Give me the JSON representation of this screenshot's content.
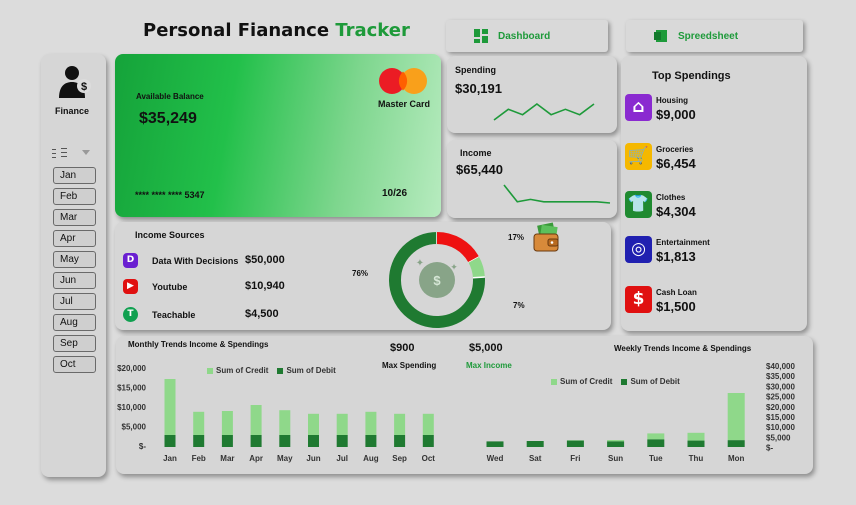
{
  "header": {
    "title_black": "Personal Fianance",
    "title_green": "Tracker"
  },
  "nav": {
    "dashboard": "Dashboard",
    "spreadsheet": "Spreedsheet"
  },
  "sidebar": {
    "label": "Finance",
    "months": [
      "Jan",
      "Feb",
      "Mar",
      "Apr",
      "May",
      "Jun",
      "Jul",
      "Aug",
      "Sep",
      "Oct"
    ]
  },
  "card": {
    "balance_label": "Available Balance",
    "balance": "$35,249",
    "brand": "Master Card",
    "number": "**** **** **** 5347",
    "expiry": "10/26"
  },
  "spending": {
    "label": "Spending",
    "value": "$30,191",
    "trend": [
      3,
      5,
      4,
      6,
      4,
      5,
      4,
      6
    ]
  },
  "income": {
    "label": "Income",
    "value": "$65,440",
    "trend": [
      9,
      2,
      3,
      2,
      2,
      2,
      2,
      2,
      1.5
    ]
  },
  "income_sources": {
    "title": "Income Sources",
    "items": [
      {
        "name": "Data With Decisions",
        "amount": "$50,000",
        "icon": "d-logo-icon",
        "color": "#6a1fd1"
      },
      {
        "name": "Youtube",
        "amount": "$10,940",
        "icon": "youtube-icon",
        "color": "#e01010"
      },
      {
        "name": "Teachable",
        "amount": "$4,500",
        "icon": "teachable-icon",
        "color": "#10a050"
      }
    ]
  },
  "donut": {
    "labels": [
      "76%",
      "17%",
      "7%"
    ],
    "values": [
      76,
      17,
      7
    ],
    "colors": [
      "#1f7a31",
      "#ee1111",
      "#8fd88a"
    ]
  },
  "top_spendings": {
    "title": "Top Spendings",
    "items": [
      {
        "name": "Housing",
        "amount": "$9,000",
        "icon": "house-icon",
        "color": "#8a2ad0"
      },
      {
        "name": "Groceries",
        "amount": "$6,454",
        "icon": "groceries-icon",
        "color": "#f5b800"
      },
      {
        "name": "Clothes",
        "amount": "$4,304",
        "icon": "shirt-icon",
        "color": "#1f8a30"
      },
      {
        "name": "Entertainment",
        "amount": "$1,813",
        "icon": "film-reel-icon",
        "color": "#2020b0"
      },
      {
        "name": "Cash Loan",
        "amount": "$1,500",
        "icon": "cash-loan-icon",
        "color": "#e01010"
      }
    ]
  },
  "kpis": {
    "max_spending": "$900",
    "max_spending_label": "Max Spending",
    "max_income": "$5,000",
    "max_income_label": "Max Income"
  },
  "colors": {
    "credit": "#8fd88a",
    "debit": "#1f7a31",
    "accent": "#1e9a3a"
  },
  "chart_data": [
    {
      "type": "bar",
      "title": "Monthly Trends Income & Spendings",
      "categories": [
        "Jan",
        "Feb",
        "Mar",
        "Apr",
        "May",
        "Jun",
        "Jul",
        "Aug",
        "Sep",
        "Oct"
      ],
      "series": [
        {
          "name": "Sum of Credit",
          "values": [
            17000,
            8800,
            9000,
            10500,
            9200,
            8300,
            8300,
            8800,
            8300,
            8300
          ]
        },
        {
          "name": "Sum of Debit",
          "values": [
            3000,
            3000,
            3000,
            3000,
            3000,
            3000,
            3000,
            3000,
            3000,
            3000
          ]
        }
      ],
      "ylim": [
        0,
        20000
      ],
      "yticks": [
        "$20,000",
        "$15,000",
        "$10,000",
        "$5,000",
        "$-"
      ],
      "legend": "top"
    },
    {
      "type": "bar",
      "title": "Weekly Trends Income & Spendings",
      "categories": [
        "Wed",
        "Sat",
        "Fri",
        "Sun",
        "Tue",
        "Thu",
        "Mon"
      ],
      "series": [
        {
          "name": "Sum of Credit",
          "values": [
            0,
            0,
            3400,
            3500,
            6800,
            7100,
            27000
          ]
        },
        {
          "name": "Sum of Debit",
          "values": [
            2800,
            3000,
            3200,
            2800,
            3800,
            3200,
            3400
          ]
        }
      ],
      "ylim": [
        0,
        40000
      ],
      "yticks": [
        "$40,000",
        "$35,000",
        "$30,000",
        "$25,000",
        "$20,000",
        "$15,000",
        "$10,000",
        "$5,000",
        "$-"
      ],
      "legend": "top"
    }
  ]
}
